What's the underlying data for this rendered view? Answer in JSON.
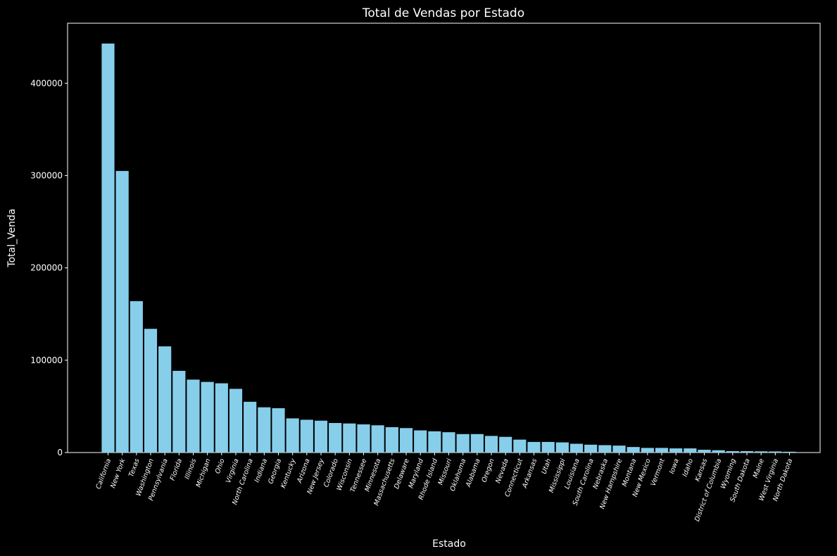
{
  "chart_data": {
    "type": "bar",
    "title": "Total de Vendas por Estado",
    "xlabel": "Estado",
    "ylabel": "Total_Venda",
    "ylim": [
      0,
      465000
    ],
    "yticks": [
      0,
      100000,
      200000,
      300000,
      400000
    ],
    "bar_color": "#87ceeb",
    "background": "#000000",
    "grid": false,
    "categories": [
      "California",
      "New York",
      "Texas",
      "Washington",
      "Pennsylvania",
      "Florida",
      "Illinois",
      "Michigan",
      "Ohio",
      "Virginia",
      "North Carolina",
      "Indiana",
      "Georgia",
      "Kentucky",
      "Arizona",
      "New Jersey",
      "Colorado",
      "Wisconsin",
      "Tennessee",
      "Minnesota",
      "Massachusetts",
      "Delaware",
      "Maryland",
      "Rhode Island",
      "Missouri",
      "Oklahoma",
      "Alabama",
      "Oregon",
      "Nevada",
      "Connecticut",
      "Arkansas",
      "Utah",
      "Mississippi",
      "Louisiana",
      "South Carolina",
      "Nebraska",
      "New Hampshire",
      "Montana",
      "New Mexico",
      "Vermont",
      "Iowa",
      "Idaho",
      "Kansas",
      "District of Columbia",
      "Wyoming",
      "South Dakota",
      "Maine",
      "West Virginia",
      "North Dakota"
    ],
    "values": [
      443000,
      305000,
      164000,
      134000,
      115000,
      88500,
      79000,
      76500,
      75000,
      69000,
      55000,
      49000,
      48000,
      37000,
      35500,
      34500,
      32000,
      31500,
      30500,
      29500,
      27500,
      26500,
      24000,
      23000,
      22000,
      20000,
      20000,
      18000,
      17000,
      14000,
      11500,
      11500,
      11000,
      9500,
      8500,
      8000,
      7500,
      6000,
      5000,
      5000,
      4500,
      4500,
      3000,
      2500,
      1500,
      1500,
      1300,
      1200,
      900
    ]
  }
}
